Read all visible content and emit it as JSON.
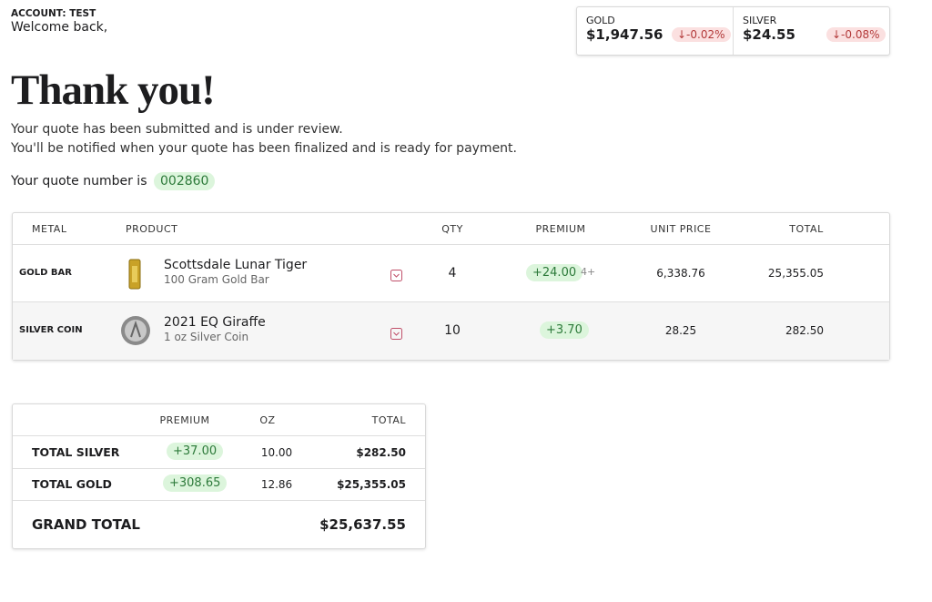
{
  "header": {
    "account": "ACCOUNT: TEST",
    "greeting": "Welcome back,"
  },
  "tickers": [
    {
      "name": "GOLD",
      "price": "$1,947.56",
      "change": "↓-0.02%"
    },
    {
      "name": "SILVER",
      "price": "$24.55",
      "change": "↓-0.08%"
    }
  ],
  "title": "Thank you!",
  "messages": [
    "Your quote has been submitted and is under review.",
    "You'll be notified when your quote has been finalized and is ready for payment."
  ],
  "quote": {
    "label": "Your quote number is",
    "number": "002860"
  },
  "items_table": {
    "headers": [
      "METAL",
      "PRODUCT",
      "QTY",
      "PREMIUM",
      "UNIT PRICE",
      "TOTAL"
    ],
    "rows": [
      {
        "metal": "GOLD BAR",
        "product": "Scottsdale Lunar Tiger",
        "description": "100 Gram Gold Bar",
        "qty": "4",
        "premium": "+24.00",
        "tier": "4+",
        "unit_price": "6,338.76",
        "total": "25,355.05"
      },
      {
        "metal": "SILVER COIN",
        "product": "2021 EQ Giraffe",
        "description": "1 oz Silver Coin",
        "qty": "10",
        "premium": "+3.70",
        "unit_price": "28.25",
        "total": "282.50"
      }
    ]
  },
  "summary_table": {
    "headers": [
      "PREMIUM",
      "OZ",
      "TOTAL"
    ],
    "rows": [
      {
        "label": "TOTAL SILVER",
        "premium": "+37.00",
        "oz": "10.00",
        "total": "$282.50"
      },
      {
        "label": "TOTAL GOLD",
        "premium": "+308.65",
        "oz": "12.86",
        "total": "$25,355.05"
      }
    ],
    "grand_total": {
      "label": "GRAND TOTAL",
      "total": "$25,637.55"
    }
  }
}
